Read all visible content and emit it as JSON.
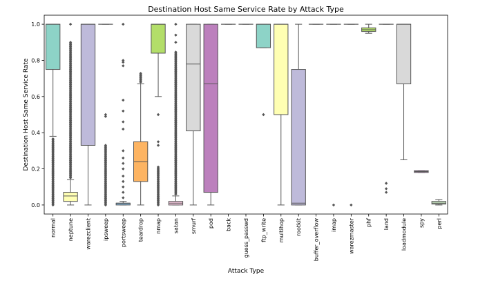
{
  "chart_data": {
    "type": "box",
    "title": "Destination Host Same Service Rate by Attack Type",
    "xlabel": "Attack Type",
    "ylabel": "Destination Host Same Service Rate",
    "ylim": [
      -0.05,
      1.05
    ],
    "yticks": [
      0.0,
      0.2,
      0.4,
      0.6,
      0.8,
      1.0
    ],
    "ytick_labels": [
      "0.0",
      "0.2",
      "0.4",
      "0.6",
      "0.8",
      "1.0"
    ],
    "grid": false,
    "categories": [
      "normal",
      "neptune",
      "warezclient",
      "ipsweep",
      "portsweep",
      "teardrop",
      "nmap",
      "satan",
      "smurf",
      "pod",
      "back",
      "guess_passwd",
      "ftp_write",
      "multihop",
      "rootkit",
      "buffer_overflow",
      "imap",
      "warezmaster",
      "phf",
      "land",
      "loadmodule",
      "spy",
      "perl"
    ],
    "boxes": [
      {
        "q1": 0.75,
        "median": 1.0,
        "q3": 1.0,
        "whislo": 0.38,
        "whishi": 1.0,
        "fliers_from": 0.0,
        "fliers_to": 0.37,
        "fliers": [],
        "color": "#8dd3c7"
      },
      {
        "q1": 0.02,
        "median": 0.05,
        "q3": 0.07,
        "whislo": 0.0,
        "whishi": 0.14,
        "fliers_from": 0.15,
        "fliers_to": 0.9,
        "fliers": [
          1.0
        ],
        "color": "#ffffb3"
      },
      {
        "q1": 0.33,
        "median": 1.0,
        "q3": 1.0,
        "whislo": 0.0,
        "whishi": 1.0,
        "fliers": [],
        "color": "#bebada"
      },
      {
        "q1": 1.0,
        "median": 1.0,
        "q3": 1.0,
        "whislo": 1.0,
        "whishi": 1.0,
        "fliers_from": 0.0,
        "fliers_to": 0.33,
        "fliers": [
          0.49,
          0.5
        ],
        "color": "#fb8072"
      },
      {
        "q1": 0.0,
        "median": 0.01,
        "q3": 0.01,
        "whislo": 0.0,
        "whishi": 0.02,
        "fliers": [
          0.04,
          0.07,
          0.1,
          0.13,
          0.16,
          0.2,
          0.23,
          0.26,
          0.3,
          0.42,
          0.46,
          0.52,
          0.58,
          0.77,
          0.79,
          0.8,
          1.0
        ],
        "color": "#80b1d3"
      },
      {
        "q1": 0.13,
        "median": 0.24,
        "q3": 0.35,
        "whislo": 0.0,
        "whishi": 0.67,
        "fliers_from": 0.68,
        "fliers_to": 0.73,
        "fliers": [],
        "color": "#fdb462"
      },
      {
        "q1": 0.84,
        "median": 1.0,
        "q3": 1.0,
        "whislo": 0.6,
        "whishi": 1.0,
        "fliers_from": 0.0,
        "fliers_to": 0.21,
        "fliers": [
          0.33,
          0.35,
          0.5
        ],
        "color": "#b3de69"
      },
      {
        "q1": 0.0,
        "median": 0.01,
        "q3": 0.02,
        "whislo": 0.0,
        "whishi": 0.05,
        "fliers_from": 0.06,
        "fliers_to": 0.85,
        "fliers": [
          0.9,
          0.94,
          1.0
        ],
        "color": "#fccde5"
      },
      {
        "q1": 0.41,
        "median": 0.78,
        "q3": 1.0,
        "whislo": 0.0,
        "whishi": 1.0,
        "fliers": [],
        "color": "#d9d9d9"
      },
      {
        "q1": 0.07,
        "median": 0.67,
        "q3": 1.0,
        "whislo": 0.0,
        "whishi": 1.0,
        "fliers": [],
        "color": "#bc80bd"
      },
      {
        "q1": 1.0,
        "median": 1.0,
        "q3": 1.0,
        "whislo": 1.0,
        "whishi": 1.0,
        "fliers": [],
        "color": "#ccebc5"
      },
      {
        "q1": 1.0,
        "median": 1.0,
        "q3": 1.0,
        "whislo": 1.0,
        "whishi": 1.0,
        "fliers": [],
        "color": "#ffed6f"
      },
      {
        "q1": 0.87,
        "median": 1.0,
        "q3": 1.0,
        "whislo": 0.87,
        "whishi": 1.0,
        "fliers": [
          0.5
        ],
        "color": "#8dd3c7"
      },
      {
        "q1": 0.5,
        "median": 1.0,
        "q3": 1.0,
        "whislo": 0.0,
        "whishi": 1.0,
        "fliers": [],
        "color": "#ffffb3"
      },
      {
        "q1": 0.0,
        "median": 0.01,
        "q3": 0.75,
        "whislo": 0.0,
        "whishi": 1.0,
        "fliers": [],
        "color": "#bebada"
      },
      {
        "q1": 1.0,
        "median": 1.0,
        "q3": 1.0,
        "whislo": 1.0,
        "whishi": 1.0,
        "fliers": [],
        "color": "#fb8072"
      },
      {
        "q1": 1.0,
        "median": 1.0,
        "q3": 1.0,
        "whislo": 1.0,
        "whishi": 1.0,
        "fliers": [
          0.0
        ],
        "color": "#80b1d3"
      },
      {
        "q1": 1.0,
        "median": 1.0,
        "q3": 1.0,
        "whislo": 1.0,
        "whishi": 1.0,
        "fliers": [
          0.0
        ],
        "color": "#fdb462"
      },
      {
        "q1": 0.96,
        "median": 0.97,
        "q3": 0.98,
        "whislo": 0.95,
        "whishi": 1.0,
        "fliers": [],
        "color": "#b3de69"
      },
      {
        "q1": 1.0,
        "median": 1.0,
        "q3": 1.0,
        "whislo": 1.0,
        "whishi": 1.0,
        "fliers": [
          0.07,
          0.09,
          0.12
        ],
        "color": "#fccde5"
      },
      {
        "q1": 0.67,
        "median": 1.0,
        "q3": 1.0,
        "whislo": 0.25,
        "whishi": 1.0,
        "fliers": [],
        "color": "#d9d9d9"
      },
      {
        "q1": 0.18,
        "median": 0.185,
        "q3": 0.19,
        "whislo": 0.18,
        "whishi": 0.19,
        "fliers": [],
        "color": "#bc80bd"
      },
      {
        "q1": 0.005,
        "median": 0.01,
        "q3": 0.02,
        "whislo": 0.0,
        "whishi": 0.03,
        "fliers": [],
        "color": "#ccebc5"
      }
    ]
  }
}
